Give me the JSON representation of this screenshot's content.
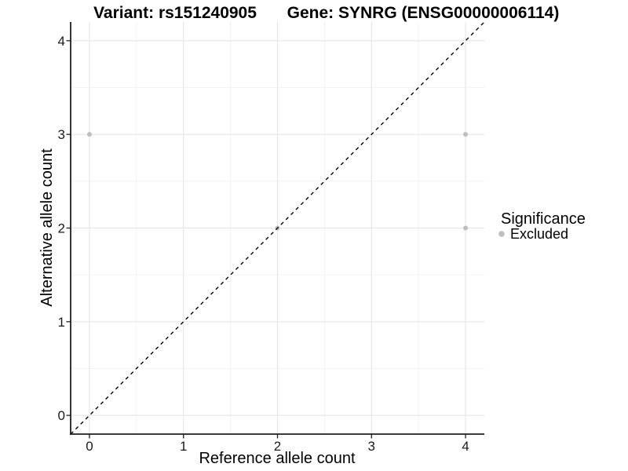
{
  "figure": {
    "title_left": "Variant: rs151240905",
    "title_right": "Gene: SYNRG (ENSG00000006114)"
  },
  "chart_data": {
    "type": "scatter",
    "title_left": "Variant: rs151240905",
    "title_right": "Gene: SYNRG (ENSG00000006114)",
    "xlabel": "Reference allele count",
    "ylabel": "Alternative allele count",
    "xlim": [
      -0.2,
      4.2
    ],
    "ylim": [
      -0.2,
      4.2
    ],
    "x_ticks": [
      0,
      1,
      2,
      3,
      4
    ],
    "y_ticks": [
      0,
      1,
      2,
      3,
      4
    ],
    "x_minor_ticks": [
      0.5,
      1.5,
      2.5,
      3.5
    ],
    "y_minor_ticks": [
      0.5,
      1.5,
      2.5,
      3.5
    ],
    "grid": true,
    "series": [
      {
        "name": "Excluded",
        "color": "#bebebe",
        "points": [
          [
            0,
            3
          ],
          [
            2,
            2
          ],
          [
            4,
            3
          ],
          [
            4,
            2
          ]
        ]
      }
    ],
    "reference_line": {
      "type": "abline",
      "slope": 1,
      "intercept": 0,
      "linestyle": "dashed",
      "color": "#000000"
    },
    "legend": {
      "title": "Significance",
      "position": "right",
      "items": [
        {
          "label": "Excluded",
          "color": "#bebebe"
        }
      ]
    },
    "colors": {
      "background": "#ffffff",
      "grid_major": "#e7e7e7",
      "grid_minor": "#f0f0f0",
      "axis_line": "#1f1f1f",
      "tick_mark": "#1f1f1f",
      "point": "#bebebe"
    }
  }
}
